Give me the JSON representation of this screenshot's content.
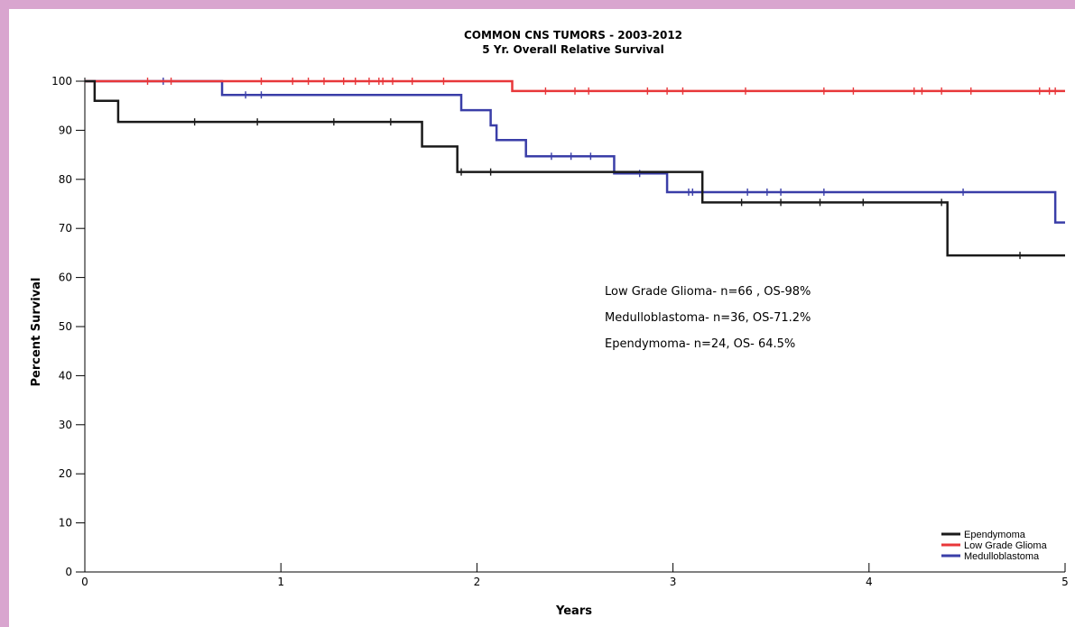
{
  "chart_data": {
    "type": "line",
    "step": true,
    "title": "COMMON CNS TUMORS - 2003-2012",
    "subtitle": "5 Yr. Overall Relative Survival",
    "xlabel": "Years",
    "ylabel": "Percent Survival",
    "xlim": [
      0,
      5
    ],
    "ylim": [
      0,
      100
    ],
    "x_ticks": [
      0,
      1,
      2,
      3,
      4,
      5
    ],
    "y_ticks": [
      0,
      10,
      20,
      30,
      40,
      50,
      60,
      70,
      80,
      90,
      100
    ],
    "grid": false,
    "legend_position": "bottom-right",
    "annotations": [
      "Low Grade Glioma- n=66 , OS-98%",
      "Medulloblastoma- n=36,  OS-71.2%",
      "Ependymoma- n=24, OS- 64.5%"
    ],
    "series": [
      {
        "name": "Ependymoma",
        "color": "#1a1a1a",
        "x": [
          0,
          0.05,
          0.17,
          1.72,
          1.9,
          3.15,
          4.4,
          5.0
        ],
        "y": [
          100,
          96,
          91.7,
          86.7,
          81.5,
          75.3,
          64.5,
          64.5
        ],
        "censor_x": [
          0.56,
          0.88,
          1.27,
          1.56,
          1.92,
          2.07,
          3.35,
          3.55,
          3.75,
          3.97,
          4.37,
          4.77
        ],
        "censor_y": [
          91.7,
          91.7,
          91.7,
          91.7,
          81.5,
          81.5,
          75.3,
          75.3,
          75.3,
          75.3,
          75.3,
          64.5
        ]
      },
      {
        "name": "Low Grade Glioma",
        "color": "#e8373a",
        "x": [
          0,
          2.18,
          5.0
        ],
        "y": [
          100,
          98,
          98
        ],
        "censor_x": [
          0.32,
          0.44,
          0.9,
          1.06,
          1.14,
          1.22,
          1.32,
          1.38,
          1.45,
          1.5,
          1.52,
          1.57,
          1.67,
          1.83,
          2.35,
          2.5,
          2.57,
          2.87,
          2.97,
          3.05,
          3.37,
          3.77,
          3.92,
          4.23,
          4.27,
          4.37,
          4.52,
          4.87,
          4.92,
          4.95
        ],
        "censor_y": [
          100,
          100,
          100,
          100,
          100,
          100,
          100,
          100,
          100,
          100,
          100,
          100,
          100,
          100,
          98,
          98,
          98,
          98,
          98,
          98,
          98,
          98,
          98,
          98,
          98,
          98,
          98,
          98,
          98,
          98
        ]
      },
      {
        "name": "Medulloblastoma",
        "color": "#3a3ea8",
        "x": [
          0,
          0.7,
          1.92,
          2.07,
          2.1,
          2.25,
          2.7,
          2.97,
          4.95,
          5.0
        ],
        "y": [
          100,
          97.2,
          94.1,
          91,
          88,
          84.7,
          81.2,
          77.4,
          71.2,
          71.2
        ],
        "censor_x": [
          0.4,
          0.82,
          0.9,
          2.38,
          2.48,
          2.58,
          2.83,
          3.08,
          3.1,
          3.38,
          3.48,
          3.55,
          3.77,
          4.48
        ],
        "censor_y": [
          100,
          97.2,
          97.2,
          84.7,
          84.7,
          84.7,
          81.2,
          77.4,
          77.4,
          77.4,
          77.4,
          77.4,
          77.4,
          77.4
        ]
      }
    ]
  }
}
